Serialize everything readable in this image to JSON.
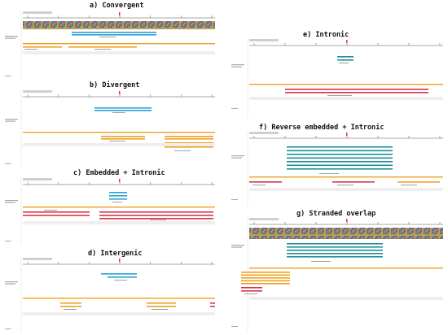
{
  "panels": [
    {
      "id": "a",
      "title": "a) Convergent"
    },
    {
      "id": "b",
      "title": "b) Divergent"
    },
    {
      "id": "c",
      "title": "c) Embedded + Intronic"
    },
    {
      "id": "d",
      "title": "d) Intergenic"
    },
    {
      "id": "e",
      "title": "e) Intronic"
    },
    {
      "id": "f",
      "title": "f) Reverse embedded + Intronic"
    },
    {
      "id": "g",
      "title": "g) Stranded overlap"
    }
  ],
  "colors": {
    "query_track": "#2a9fd6",
    "teal_track": "#1f8f95",
    "gene_track": "#f0a020",
    "red_track": "#d8324a",
    "ruler": "#555555",
    "coverage_mix": [
      "#5a8f5a",
      "#c74e4e",
      "#4e6fb8",
      "#999999",
      "#b8a04e"
    ]
  }
}
